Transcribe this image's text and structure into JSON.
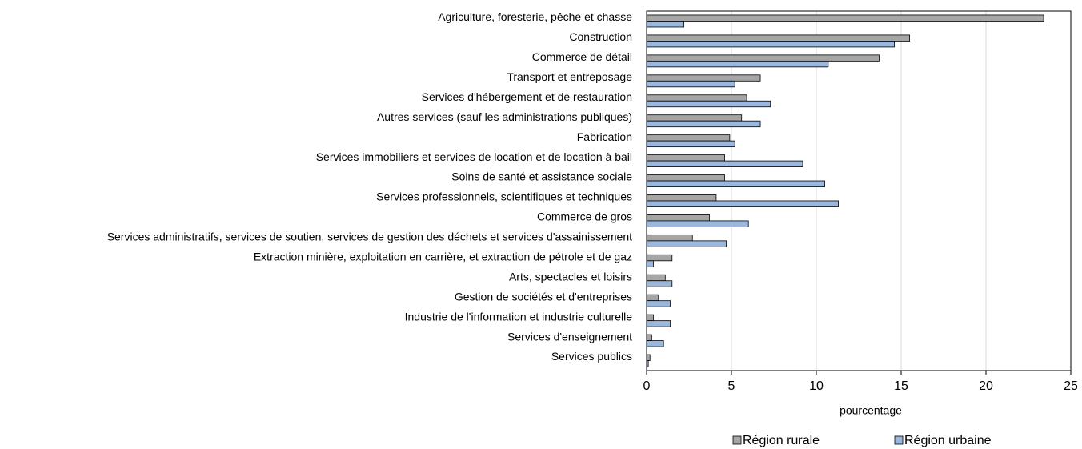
{
  "chart_data": {
    "type": "bar",
    "orientation": "horizontal",
    "categories": [
      "Agriculture, foresterie, pêche et chasse",
      "Construction",
      "Commerce de détail",
      "Transport et entreposage",
      "Services d'hébergement et de restauration",
      "Autres services (sauf les administrations publiques)",
      "Fabrication",
      "Services immobiliers et services de location et de location à bail",
      "Soins de santé et assistance sociale",
      "Services professionnels, scientifiques et techniques",
      "Commerce de gros",
      "Services administratifs, services de soutien, services de gestion des déchets et services d'assainissement",
      "Extraction minière, exploitation en carrière, et extraction de pétrole et de gaz",
      "Arts, spectacles et loisirs",
      "Gestion de sociétés et d'entreprises",
      "Industrie de l'information et industrie culturelle",
      "Services d'enseignement",
      "Services publics"
    ],
    "series": [
      {
        "name": "Région rurale",
        "color": "#a6a6a6",
        "values": [
          23.4,
          15.5,
          13.7,
          6.7,
          5.9,
          5.6,
          4.9,
          4.6,
          4.6,
          4.1,
          3.7,
          2.7,
          1.5,
          1.1,
          0.7,
          0.4,
          0.3,
          0.2
        ]
      },
      {
        "name": "Région urbaine",
        "color": "#9bb7dc",
        "values": [
          2.2,
          14.6,
          10.7,
          5.2,
          7.3,
          6.7,
          5.2,
          9.2,
          10.5,
          11.3,
          6.0,
          4.7,
          0.4,
          1.5,
          1.4,
          1.4,
          1.0,
          0.1
        ]
      }
    ],
    "x_label": "pourcentage",
    "xlim": [
      0,
      25
    ],
    "xticks": [
      0,
      5,
      10,
      15,
      20,
      25
    ],
    "grid": true,
    "legend": "bottom"
  }
}
